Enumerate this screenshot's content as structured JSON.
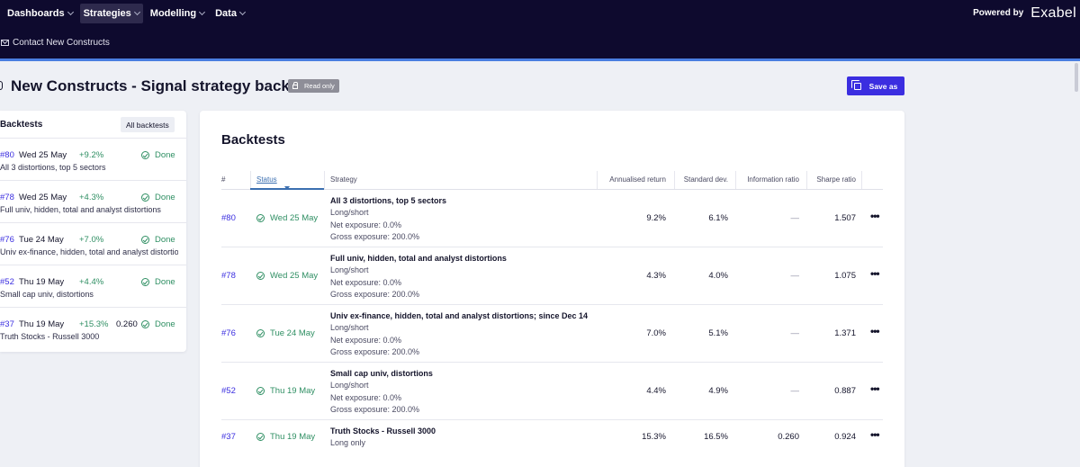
{
  "topnav": {
    "items": [
      {
        "label": "Dashboards"
      },
      {
        "label": "Strategies"
      },
      {
        "label": "Modelling"
      },
      {
        "label": "Data"
      }
    ],
    "active": "Strategies",
    "powered_by": "Powered by",
    "brand": "Exabel"
  },
  "subbar": {
    "label": "Contact New Constructs"
  },
  "header": {
    "title": "New Constructs - Signal strategy backtests",
    "readonly_label": "Read only",
    "save_as_label": "Save as"
  },
  "sidebar": {
    "title": "Backtests",
    "all_button": "All backtests",
    "items": [
      {
        "id": "#80",
        "date": "Wed 25 May",
        "ret": "+9.2%",
        "info": "",
        "status": "Done",
        "desc": "All 3 distortions, top 5 sectors"
      },
      {
        "id": "#78",
        "date": "Wed 25 May",
        "ret": "+4.3%",
        "info": "",
        "status": "Done",
        "desc": "Full univ, hidden, total and analyst distortions"
      },
      {
        "id": "#76",
        "date": "Tue 24 May",
        "ret": "+7.0%",
        "info": "",
        "status": "Done",
        "desc": "Univ ex-finance, hidden, total and analyst distortio"
      },
      {
        "id": "#52",
        "date": "Thu 19 May",
        "ret": "+4.4%",
        "info": "",
        "status": "Done",
        "desc": "Small cap univ, distortions"
      },
      {
        "id": "#37",
        "date": "Thu 19 May",
        "ret": "+15.3%",
        "info": "0.260",
        "status": "Done",
        "desc": "Truth Stocks - Russell 3000"
      }
    ]
  },
  "main": {
    "title": "Backtests",
    "columns": {
      "id": "#",
      "status": "Status",
      "strategy": "Strategy",
      "annualised": "Annualised return",
      "stddev": "Standard dev.",
      "info": "Information ratio",
      "sharpe": "Sharpe ratio"
    },
    "rows": [
      {
        "id": "#80",
        "date": "Wed 25 May",
        "name": "All 3 distortions, top 5 sectors",
        "type": "Long/short",
        "net": "Net exposure: 0.0%",
        "gross": "Gross exposure: 200.0%",
        "ret": "9.2%",
        "sd": "6.1%",
        "ir": "—",
        "sharpe": "1.507"
      },
      {
        "id": "#78",
        "date": "Wed 25 May",
        "name": "Full univ, hidden, total and analyst distortions",
        "type": "Long/short",
        "net": "Net exposure: 0.0%",
        "gross": "Gross exposure: 200.0%",
        "ret": "4.3%",
        "sd": "4.0%",
        "ir": "—",
        "sharpe": "1.075"
      },
      {
        "id": "#76",
        "date": "Tue 24 May",
        "name": "Univ ex-finance, hidden, total and analyst distortions; since Dec 14",
        "type": "Long/short",
        "net": "Net exposure: 0.0%",
        "gross": "Gross exposure: 200.0%",
        "ret": "7.0%",
        "sd": "5.1%",
        "ir": "—",
        "sharpe": "1.371"
      },
      {
        "id": "#52",
        "date": "Thu 19 May",
        "name": "Small cap univ, distortions",
        "type": "Long/short",
        "net": "Net exposure: 0.0%",
        "gross": "Gross exposure: 200.0%",
        "ret": "4.4%",
        "sd": "4.9%",
        "ir": "—",
        "sharpe": "0.887"
      },
      {
        "id": "#37",
        "date": "Thu 19 May",
        "name": "Truth Stocks - Russell 3000",
        "type": "Long only",
        "net": "",
        "gross": "",
        "ret": "15.3%",
        "sd": "16.5%",
        "ir": "0.260",
        "sharpe": "0.924"
      }
    ],
    "more_glyph": "•••"
  },
  "colors": {
    "nav_bg": "#0e0a2e",
    "accent": "#3b2ee0",
    "success": "#2f8f63",
    "page_bg": "#eef0f5"
  }
}
